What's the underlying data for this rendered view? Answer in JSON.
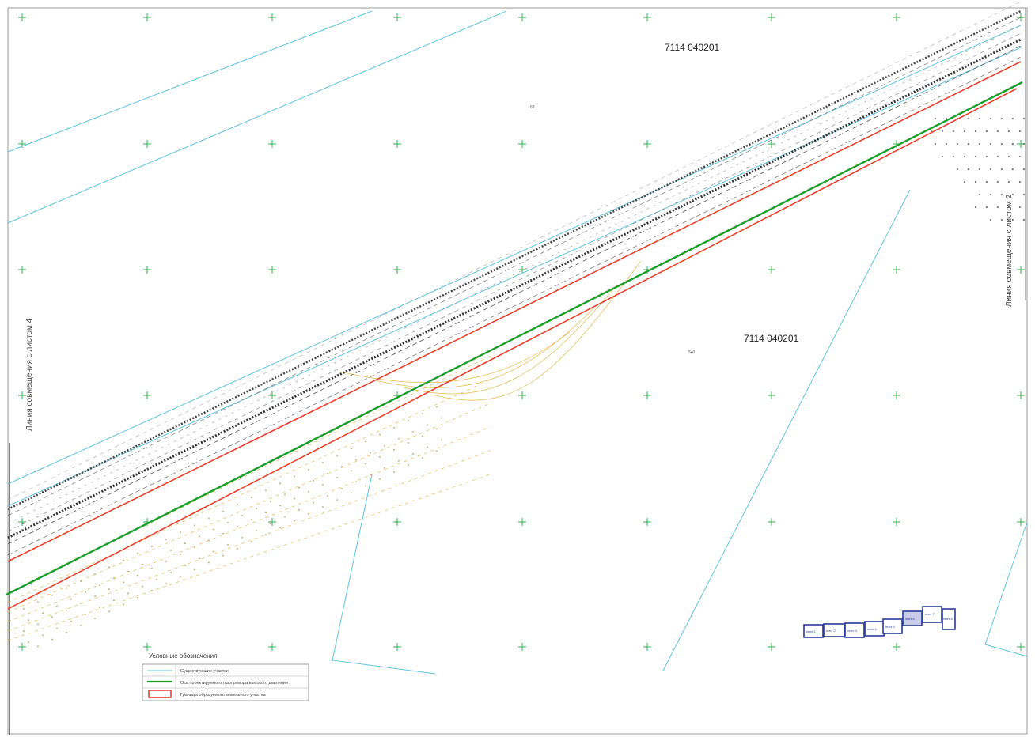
{
  "map": {
    "cadastral_top": "7114 040201",
    "cadastral_mid": "7114 040201",
    "small_label_top": "68",
    "small_label_mid": "540",
    "side_left": "Линия совмещения с листом 4",
    "side_right": "Линия совмещения с листом 2"
  },
  "legend": {
    "title": "Условные обозначения",
    "items": [
      {
        "text": "Существующие участки",
        "color": "#5ec4e0"
      },
      {
        "text": "Ось проектируемого газопровода высокого давления",
        "color": "#1a9e2a"
      },
      {
        "text": "Границы образуемого земельного участка",
        "color": "#e8402a"
      }
    ]
  },
  "sheet_index": {
    "labels": [
      "лист 1",
      "лист 2",
      "лист 3",
      "лист 4",
      "лист 5",
      "лист 6",
      "лист 7",
      "лист 8"
    ],
    "active_label": "лист 6",
    "color": "#2a3a9a"
  },
  "colors": {
    "grid_cross": "#2fb24a",
    "gas_axis": "#1a9e2a",
    "boundary": "#e8402a",
    "existing": "#5ec4e0",
    "contour": "#e8b84a"
  }
}
